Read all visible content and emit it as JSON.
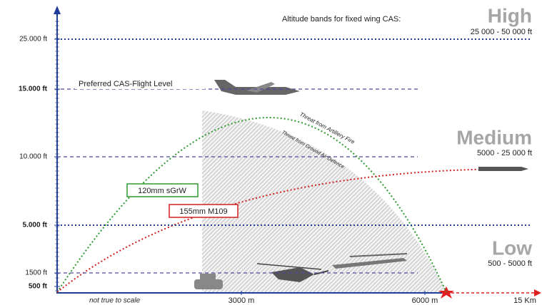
{
  "title": "Altitude bands for fixed wing CAS:",
  "bands": [
    {
      "name": "High",
      "range": "25 000 - 50 000 ft"
    },
    {
      "name": "Medium",
      "range": "5000 - 25 000 ft"
    },
    {
      "name": "Low",
      "range": "500 - 5000 ft"
    }
  ],
  "altitudes": [
    "25.000 ft",
    "15.000 ft",
    "10.000 ft",
    "5.000 ft",
    "1500 ft",
    "500 ft"
  ],
  "distances": [
    "3000 m",
    "6000 m",
    "15 Km"
  ],
  "labels": {
    "preferred": "Preferred CAS-Flight Level",
    "gun_120": "120mm sGrW",
    "gun_155": "155mm M109",
    "threat_artillery": "Threat from Artillery Fire",
    "threat_ground": "Threat from Ground Air Defence",
    "note": "not true to scale"
  }
}
